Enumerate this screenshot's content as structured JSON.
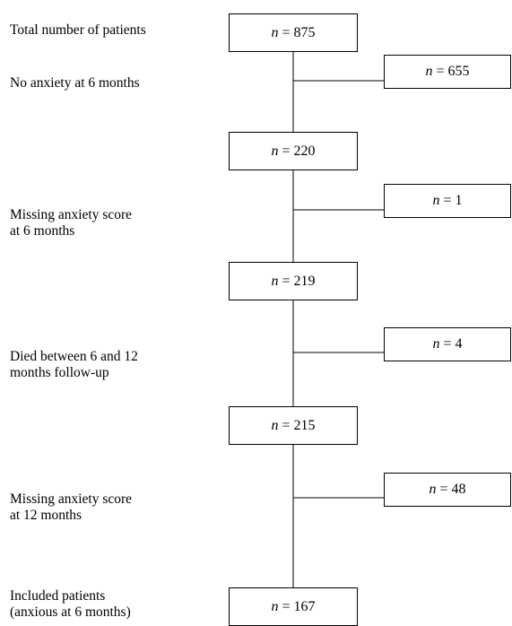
{
  "flow": {
    "variable": "n",
    "steps": [
      {
        "label_lines": [
          "Total number of patients"
        ],
        "count": "875"
      },
      {
        "label_lines": [
          "No anxiety at 6 months"
        ],
        "excluded_count": "655"
      },
      {
        "count": "220"
      },
      {
        "label_lines": [
          "Missing anxiety score",
          "at 6 months"
        ],
        "excluded_count": "1"
      },
      {
        "count": "219"
      },
      {
        "label_lines": [
          "Died between 6 and 12",
          "months follow-up"
        ],
        "excluded_count": "4"
      },
      {
        "count": "215"
      },
      {
        "label_lines": [
          "Missing anxiety score",
          "at 12 months"
        ],
        "excluded_count": "48"
      },
      {
        "label_lines": [
          "Included patients",
          "(anxious at 6 months)"
        ],
        "count": "167"
      }
    ]
  }
}
